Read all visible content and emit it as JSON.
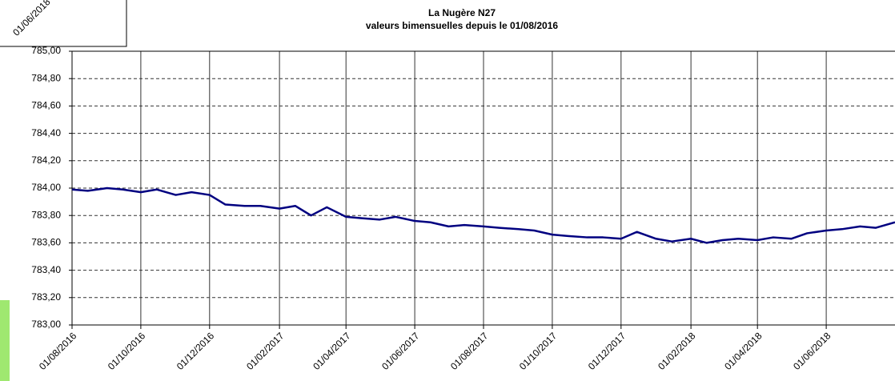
{
  "fragment_label": "01/06/2018",
  "chart_data": {
    "type": "line",
    "title": "La Nugère N27",
    "subtitle": "valeurs bimensuelles depuis le 01/08/2016",
    "x": [
      "01/08/2016",
      "15/08/2016",
      "01/09/2016",
      "15/09/2016",
      "01/10/2016",
      "15/10/2016",
      "01/11/2016",
      "15/11/2016",
      "01/12/2016",
      "15/12/2016",
      "01/01/2017",
      "15/01/2017",
      "01/02/2017",
      "15/02/2017",
      "01/03/2017",
      "15/03/2017",
      "01/04/2017",
      "15/04/2017",
      "01/05/2017",
      "15/05/2017",
      "01/06/2017",
      "15/06/2017",
      "01/07/2017",
      "15/07/2017",
      "01/08/2017",
      "15/08/2017",
      "01/09/2017",
      "15/09/2017",
      "01/10/2017",
      "15/10/2017",
      "01/11/2017",
      "15/11/2017",
      "01/12/2017",
      "15/12/2017",
      "01/01/2018",
      "15/01/2018",
      "01/02/2018",
      "15/02/2018",
      "01/03/2018",
      "15/03/2018",
      "01/04/2018",
      "15/04/2018",
      "01/05/2018",
      "15/05/2018",
      "01/06/2018",
      "15/06/2018",
      "01/07/2018",
      "15/07/2018",
      "01/08/2018"
    ],
    "series": [
      {
        "name": "N27",
        "color": "#000080",
        "values": [
          783.99,
          783.98,
          784.0,
          783.99,
          783.97,
          783.99,
          783.95,
          783.97,
          783.95,
          783.88,
          783.87,
          783.87,
          783.85,
          783.87,
          783.8,
          783.86,
          783.79,
          783.78,
          783.77,
          783.79,
          783.76,
          783.75,
          783.72,
          783.73,
          783.72,
          783.71,
          783.7,
          783.69,
          783.66,
          783.65,
          783.64,
          783.64,
          783.63,
          783.68,
          783.63,
          783.61,
          783.63,
          783.6,
          783.62,
          783.63,
          783.62,
          783.64,
          783.63,
          783.67,
          783.69,
          783.7,
          783.72,
          783.71,
          783.75
        ]
      }
    ],
    "xlim": [
      "01/08/2016",
      "01/08/2018"
    ],
    "xticks": [
      "01/08/2016",
      "01/10/2016",
      "01/12/2016",
      "01/02/2017",
      "01/04/2017",
      "01/06/2017",
      "01/08/2017",
      "01/10/2017",
      "01/12/2017",
      "01/02/2018",
      "01/04/2018",
      "01/06/2018"
    ],
    "ylim": [
      783,
      785
    ],
    "yticks": [
      {
        "value": 783,
        "label": "783,00"
      },
      {
        "value": 783.2,
        "label": "783,20"
      },
      {
        "value": 783.4,
        "label": "783,40"
      },
      {
        "value": 783.6,
        "label": "783,60"
      },
      {
        "value": 783.8,
        "label": "783,80"
      },
      {
        "value": 784,
        "label": "784,00"
      },
      {
        "value": 784.2,
        "label": "784,20"
      },
      {
        "value": 784.4,
        "label": "784,40"
      },
      {
        "value": 784.6,
        "label": "784,60"
      },
      {
        "value": 784.8,
        "label": "784,80"
      },
      {
        "value": 785,
        "label": "785,00"
      }
    ],
    "grid": true
  }
}
